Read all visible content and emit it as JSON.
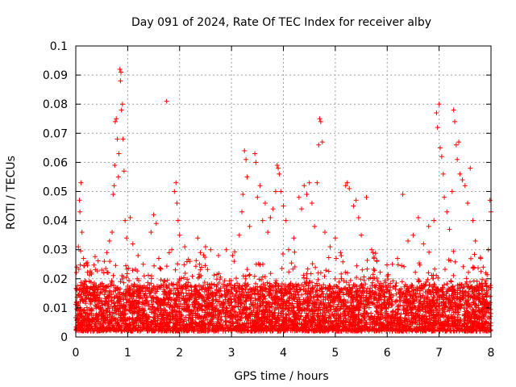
{
  "chart_data": {
    "type": "scatter",
    "title": "Day 091 of 2024, Rate Of TEC Index for receiver alby",
    "xlabel": "GPS time / hours",
    "ylabel": "ROTI / TECUs",
    "xlim": [
      0,
      8
    ],
    "ylim": [
      0,
      0.1
    ],
    "x_ticks": [
      "0",
      "1",
      "2",
      "3",
      "4",
      "5",
      "6",
      "7",
      "8"
    ],
    "y_ticks": [
      "0",
      "0.01",
      "0.02",
      "0.03",
      "0.04",
      "0.05",
      "0.06",
      "0.07",
      "0.08",
      "0.09",
      "0.1"
    ],
    "grid": true,
    "marker": "+",
    "series": [
      {
        "name": "ROTI",
        "color": "#ff0000",
        "points": [
          [
            0.02,
            0.024
          ],
          [
            0.05,
            0.031
          ],
          [
            0.07,
            0.047
          ],
          [
            0.08,
            0.043
          ],
          [
            0.1,
            0.053
          ],
          [
            0.12,
            0.036
          ],
          [
            0.15,
            0.027
          ],
          [
            0.2,
            0.019
          ],
          [
            0.3,
            0.022
          ],
          [
            0.4,
            0.017
          ],
          [
            0.5,
            0.023
          ],
          [
            0.55,
            0.026
          ],
          [
            0.6,
            0.029
          ],
          [
            0.65,
            0.033
          ],
          [
            0.7,
            0.036
          ],
          [
            0.72,
            0.049
          ],
          [
            0.74,
            0.052
          ],
          [
            0.75,
            0.059
          ],
          [
            0.76,
            0.074
          ],
          [
            0.78,
            0.075
          ],
          [
            0.8,
            0.068
          ],
          [
            0.82,
            0.055
          ],
          [
            0.83,
            0.063
          ],
          [
            0.85,
            0.092
          ],
          [
            0.86,
            0.088
          ],
          [
            0.87,
            0.091
          ],
          [
            0.88,
            0.078
          ],
          [
            0.9,
            0.08
          ],
          [
            0.91,
            0.068
          ],
          [
            0.93,
            0.057
          ],
          [
            0.95,
            0.04
          ],
          [
            0.98,
            0.034
          ],
          [
            1.05,
            0.041
          ],
          [
            1.1,
            0.032
          ],
          [
            1.2,
            0.028
          ],
          [
            1.3,
            0.025
          ],
          [
            1.45,
            0.036
          ],
          [
            1.5,
            0.042
          ],
          [
            1.55,
            0.039
          ],
          [
            1.6,
            0.027
          ],
          [
            1.75,
            0.081
          ],
          [
            1.8,
            0.029
          ],
          [
            1.85,
            0.03
          ],
          [
            1.9,
            0.05
          ],
          [
            1.93,
            0.053
          ],
          [
            1.95,
            0.046
          ],
          [
            1.97,
            0.04
          ],
          [
            2.0,
            0.035
          ],
          [
            2.1,
            0.031
          ],
          [
            2.2,
            0.026
          ],
          [
            2.35,
            0.034
          ],
          [
            2.4,
            0.029
          ],
          [
            2.5,
            0.031
          ],
          [
            2.6,
            0.03
          ],
          [
            2.75,
            0.028
          ],
          [
            2.9,
            0.03
          ],
          [
            3.05,
            0.026
          ],
          [
            3.15,
            0.035
          ],
          [
            3.2,
            0.043
          ],
          [
            3.22,
            0.049
          ],
          [
            3.25,
            0.064
          ],
          [
            3.28,
            0.061
          ],
          [
            3.3,
            0.055
          ],
          [
            3.35,
            0.038
          ],
          [
            3.45,
            0.063
          ],
          [
            3.47,
            0.06
          ],
          [
            3.5,
            0.048
          ],
          [
            3.55,
            0.052
          ],
          [
            3.6,
            0.04
          ],
          [
            3.65,
            0.046
          ],
          [
            3.7,
            0.036
          ],
          [
            3.75,
            0.041
          ],
          [
            3.8,
            0.044
          ],
          [
            3.85,
            0.05
          ],
          [
            3.88,
            0.059
          ],
          [
            3.9,
            0.058
          ],
          [
            3.92,
            0.056
          ],
          [
            3.95,
            0.05
          ],
          [
            4.0,
            0.045
          ],
          [
            4.05,
            0.04
          ],
          [
            4.1,
            0.03
          ],
          [
            4.2,
            0.034
          ],
          [
            4.3,
            0.048
          ],
          [
            4.35,
            0.044
          ],
          [
            4.4,
            0.052
          ],
          [
            4.45,
            0.049
          ],
          [
            4.5,
            0.053
          ],
          [
            4.55,
            0.046
          ],
          [
            4.6,
            0.038
          ],
          [
            4.65,
            0.053
          ],
          [
            4.68,
            0.066
          ],
          [
            4.7,
            0.075
          ],
          [
            4.72,
            0.074
          ],
          [
            4.75,
            0.067
          ],
          [
            4.8,
            0.036
          ],
          [
            4.9,
            0.031
          ],
          [
            5.0,
            0.034
          ],
          [
            5.1,
            0.029
          ],
          [
            5.2,
            0.052
          ],
          [
            5.23,
            0.053
          ],
          [
            5.27,
            0.051
          ],
          [
            5.35,
            0.045
          ],
          [
            5.4,
            0.047
          ],
          [
            5.45,
            0.041
          ],
          [
            5.5,
            0.035
          ],
          [
            5.6,
            0.048
          ],
          [
            5.7,
            0.03
          ],
          [
            5.8,
            0.026
          ],
          [
            6.0,
            0.021
          ],
          [
            6.1,
            0.025
          ],
          [
            6.2,
            0.027
          ],
          [
            6.3,
            0.049
          ],
          [
            6.4,
            0.033
          ],
          [
            6.5,
            0.035
          ],
          [
            6.6,
            0.041
          ],
          [
            6.7,
            0.032
          ],
          [
            6.8,
            0.038
          ],
          [
            6.9,
            0.04
          ],
          [
            6.95,
            0.077
          ],
          [
            6.97,
            0.072
          ],
          [
            7.0,
            0.08
          ],
          [
            7.02,
            0.065
          ],
          [
            7.05,
            0.062
          ],
          [
            7.08,
            0.056
          ],
          [
            7.1,
            0.048
          ],
          [
            7.15,
            0.043
          ],
          [
            7.2,
            0.037
          ],
          [
            7.25,
            0.05
          ],
          [
            7.28,
            0.078
          ],
          [
            7.3,
            0.074
          ],
          [
            7.33,
            0.066
          ],
          [
            7.35,
            0.061
          ],
          [
            7.38,
            0.067
          ],
          [
            7.4,
            0.056
          ],
          [
            7.45,
            0.054
          ],
          [
            7.5,
            0.052
          ],
          [
            7.55,
            0.046
          ],
          [
            7.6,
            0.058
          ],
          [
            7.65,
            0.04
          ],
          [
            7.7,
            0.033
          ],
          [
            7.8,
            0.027
          ],
          [
            7.85,
            0.024
          ],
          [
            7.9,
            0.022
          ],
          [
            7.95,
            0.03
          ],
          [
            7.98,
            0.047
          ],
          [
            8.0,
            0.043
          ]
        ]
      }
    ]
  }
}
